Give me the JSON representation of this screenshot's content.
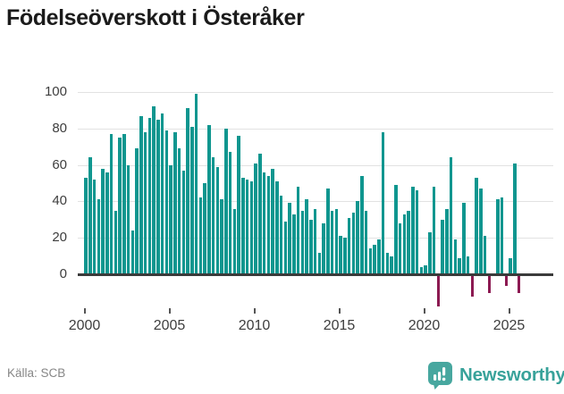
{
  "title": "Födelseöverskott i Österåker",
  "source": "Källa: SCB",
  "brand": {
    "name": "Newsworthy",
    "icon": "newsworthy-speech-bubble-chart-icon",
    "color": "#38a29a"
  },
  "colors": {
    "bar_positive": "#0f968f",
    "bar_negative": "#8c1a52",
    "gridline": "#e2e2e2",
    "axis_line": "#3b3b3b",
    "tick_label": "#3d3d3d",
    "title_text": "#1b1b1b",
    "source_text": "#868686"
  },
  "chart_data": {
    "type": "bar",
    "title": "Födelseöverskott i Österåker",
    "xlabel": "",
    "ylabel": "",
    "frequency": "quarterly",
    "grid": true,
    "ylim": [
      -20,
      105
    ],
    "y_ticks": [
      0,
      20,
      40,
      60,
      80,
      100
    ],
    "x_tick_labels": [
      "2000",
      "2005",
      "2010",
      "2015",
      "2020",
      "2025"
    ],
    "series_note": "birth surplus per quarter, 2000Q1-2025Q3",
    "series": [
      {
        "year": 2000,
        "q": [
          53,
          64,
          52,
          41
        ]
      },
      {
        "year": 2001,
        "q": [
          58,
          56,
          77,
          35
        ]
      },
      {
        "year": 2002,
        "q": [
          75,
          77,
          60,
          24
        ]
      },
      {
        "year": 2003,
        "q": [
          69,
          87,
          78,
          86
        ]
      },
      {
        "year": 2004,
        "q": [
          92,
          85,
          88,
          79
        ]
      },
      {
        "year": 2005,
        "q": [
          60,
          78,
          69,
          57
        ]
      },
      {
        "year": 2006,
        "q": [
          91,
          81,
          99,
          42
        ]
      },
      {
        "year": 2007,
        "q": [
          50,
          82,
          64,
          59
        ]
      },
      {
        "year": 2008,
        "q": [
          41,
          80,
          67,
          36
        ]
      },
      {
        "year": 2009,
        "q": [
          76,
          53,
          52,
          51
        ]
      },
      {
        "year": 2010,
        "q": [
          61,
          66,
          56,
          54
        ]
      },
      {
        "year": 2011,
        "q": [
          58,
          51,
          43,
          29
        ]
      },
      {
        "year": 2012,
        "q": [
          39,
          33,
          48,
          35
        ]
      },
      {
        "year": 2013,
        "q": [
          41,
          30,
          36,
          12
        ]
      },
      {
        "year": 2014,
        "q": [
          28,
          47,
          35,
          36
        ]
      },
      {
        "year": 2015,
        "q": [
          21,
          20,
          31,
          34
        ]
      },
      {
        "year": 2016,
        "q": [
          40,
          54,
          35,
          14
        ]
      },
      {
        "year": 2017,
        "q": [
          16,
          19,
          78,
          12
        ]
      },
      {
        "year": 2018,
        "q": [
          10,
          49,
          28,
          33
        ]
      },
      {
        "year": 2019,
        "q": [
          35,
          48,
          46,
          4
        ]
      },
      {
        "year": 2020,
        "q": [
          5,
          23,
          48,
          -17
        ]
      },
      {
        "year": 2021,
        "q": [
          30,
          36,
          64,
          19
        ]
      },
      {
        "year": 2022,
        "q": [
          9,
          39,
          10,
          -12
        ]
      },
      {
        "year": 2023,
        "q": [
          53,
          47,
          21,
          -10
        ]
      },
      {
        "year": 2024,
        "q": [
          0,
          41,
          42,
          -6
        ]
      },
      {
        "year": 2025,
        "q": [
          9,
          61,
          -10
        ]
      }
    ]
  }
}
